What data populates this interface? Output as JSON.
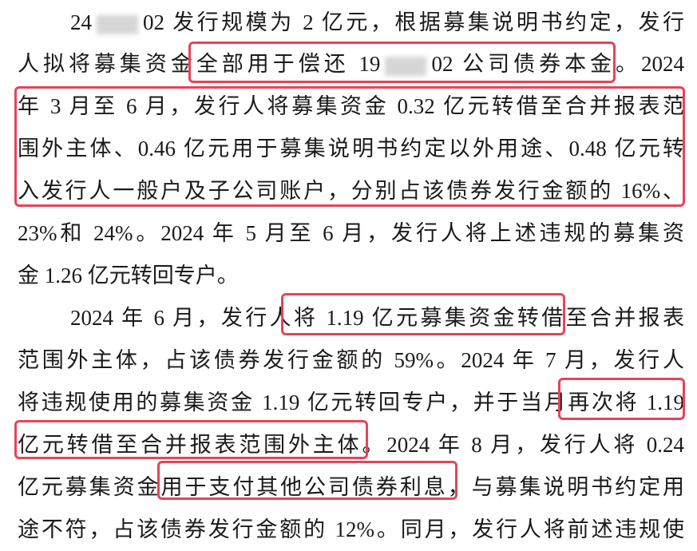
{
  "lines": [
    [
      "24",
      "02 发行规模为 2 亿元，根据募集说明书约定，发行"
    ],
    [
      "人拟将募集资金全部用于偿还 19",
      "02 公司债券本金。2024"
    ],
    [
      "年 3 月至 6 月，发行人将募集资金 0.32 亿元转借至合并报表范"
    ],
    [
      "围外主体、0.46 亿元用于募集说明书约定以外用途、0.48 亿元转"
    ],
    [
      "入发行人一般户及子公司账户，分别占该债券发行金额的 16%、"
    ],
    [
      "23%和 24%。2024 年 5 月至 6 月，发行人将上述违规的募集资"
    ],
    [
      "金 1.26 亿元转回专户。"
    ],
    [
      "2024 年 6 月，发行人将 1.19 亿元募集资金转借至合并报表"
    ],
    [
      "范围外主体，占该债券发行金额的 59%。2024 年 7 月，发行人"
    ],
    [
      "将违规使用的募集资金 1.19 亿元转回专户，并于当月再次将 1.19"
    ],
    [
      "亿元转借至合并报表范围外主体。2024 年 8 月，发行人将 0.24"
    ],
    [
      "亿元募集资金用于支付其他公司债券利息，与募集说明书约定用"
    ],
    [
      "途不符，占该债券发行金额的 12%。同月，发行人将前述违规使"
    ]
  ]
}
